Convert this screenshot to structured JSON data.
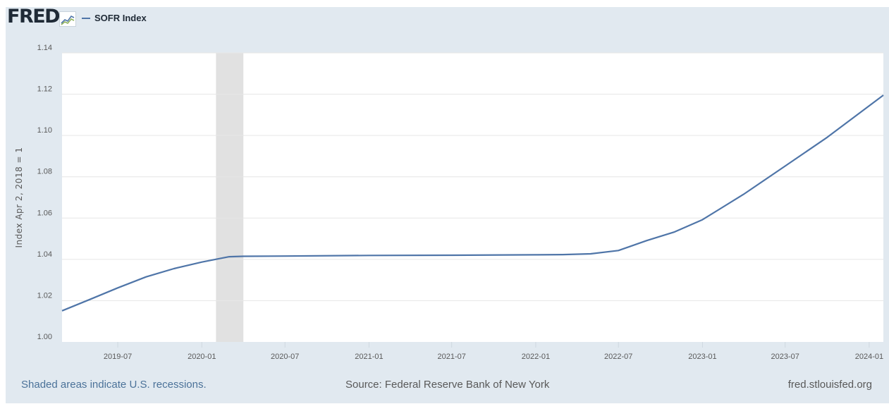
{
  "header": {
    "logo_text": "FRED",
    "legend_label": "SOFR Index",
    "series_color": "#4f75a8"
  },
  "footer": {
    "recession_note": "Shaded areas indicate U.S. recessions.",
    "source": "Source: Federal Reserve Bank of New York",
    "site": "fred.stlouisfed.org"
  },
  "chart_data": {
    "type": "line",
    "title": "",
    "xlabel": "",
    "ylabel": "Index Apr 2, 2018 = 1",
    "ylim": [
      1.0,
      1.14
    ],
    "xlim": [
      "2019-03-01",
      "2024-02-01"
    ],
    "yticks": [
      1.0,
      1.02,
      1.04,
      1.06,
      1.08,
      1.1,
      1.12,
      1.14
    ],
    "ytick_labels": [
      "1.00",
      "1.02",
      "1.04",
      "1.06",
      "1.08",
      "1.10",
      "1.12",
      "1.14"
    ],
    "xticks": [
      "2019-07-01",
      "2020-01-01",
      "2020-07-01",
      "2021-01-01",
      "2021-07-01",
      "2022-01-01",
      "2022-07-01",
      "2023-01-01",
      "2023-07-01",
      "2024-01-01"
    ],
    "xtick_labels": [
      "2019-07",
      "2020-01",
      "2020-07",
      "2021-01",
      "2021-07",
      "2022-01",
      "2022-07",
      "2023-01",
      "2023-07",
      "2024-01"
    ],
    "grid": true,
    "legend_position": "top-left",
    "recession_shading": [
      {
        "start": "2020-02-01",
        "end": "2020-04-01",
        "color": "#e1e1e1"
      }
    ],
    "series": [
      {
        "name": "SOFR Index",
        "color": "#4f75a8",
        "x": [
          "2019-03-01",
          "2019-05-01",
          "2019-07-01",
          "2019-09-01",
          "2019-11-01",
          "2020-01-01",
          "2020-03-01",
          "2020-04-01",
          "2020-07-01",
          "2021-01-01",
          "2021-07-01",
          "2022-01-01",
          "2022-03-01",
          "2022-05-01",
          "2022-07-01",
          "2022-09-01",
          "2022-11-01",
          "2023-01-01",
          "2023-04-01",
          "2023-07-01",
          "2023-10-01",
          "2024-02-01"
        ],
        "y": [
          1.0151,
          1.0206,
          1.0262,
          1.0315,
          1.0355,
          1.0387,
          1.0413,
          1.0415,
          1.0416,
          1.0419,
          1.042,
          1.0422,
          1.0423,
          1.0427,
          1.0443,
          1.0491,
          1.0533,
          1.0592,
          1.0715,
          1.0852,
          1.0991,
          1.1195
        ]
      }
    ]
  }
}
